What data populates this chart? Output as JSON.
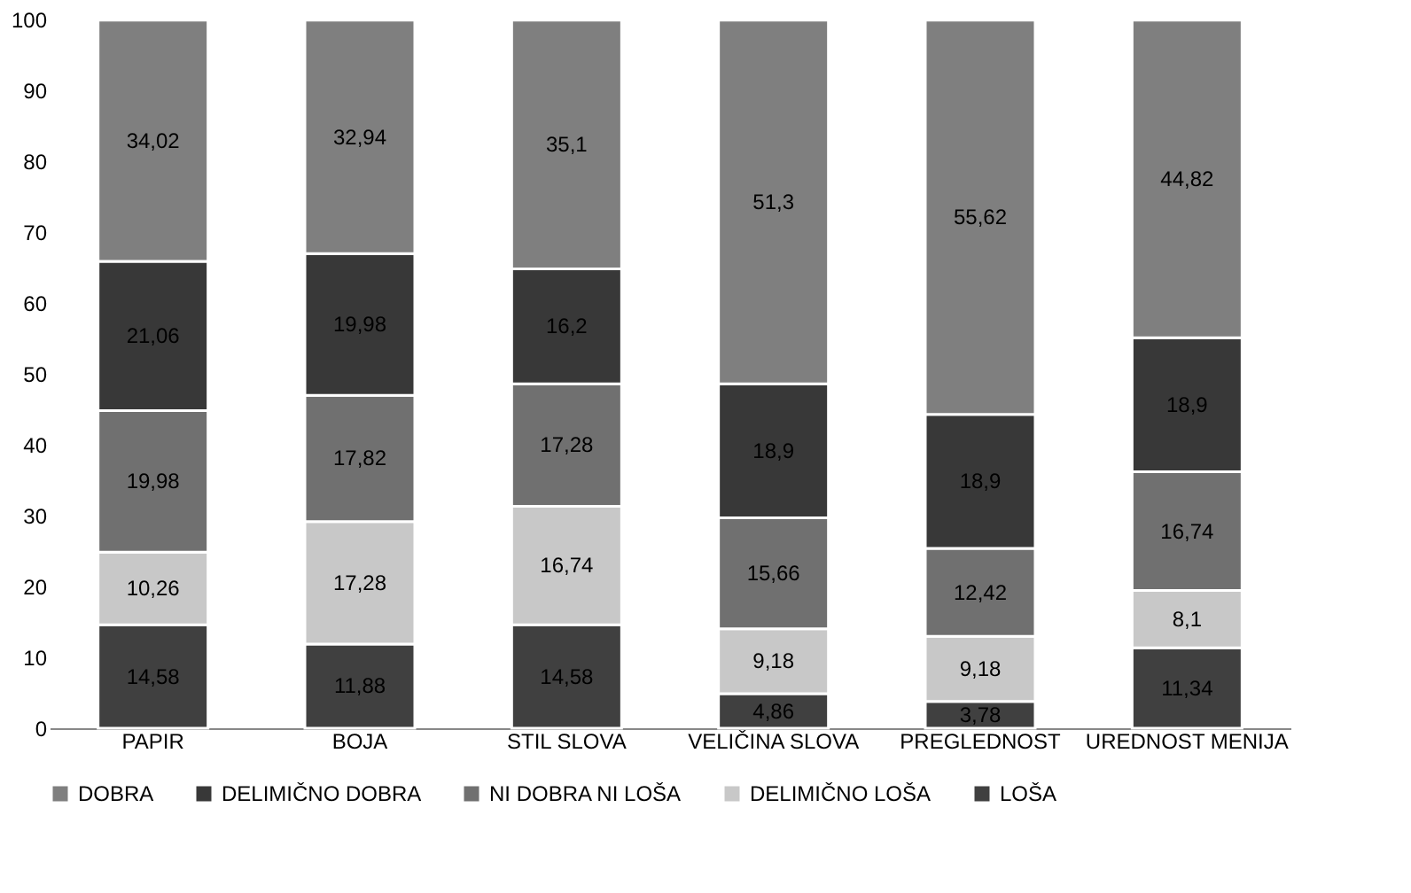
{
  "chart_data": {
    "type": "bar",
    "stacked": true,
    "categories": [
      "PAPIR",
      "BOJA",
      "STIL SLOVA",
      "VELIČINA SLOVA",
      "PREGLEDNOST",
      "UREDNOST MENIJA"
    ],
    "series": [
      {
        "name": "LOŠA",
        "color": "#404040",
        "values": [
          14.58,
          11.88,
          14.58,
          4.86,
          3.78,
          11.34
        ],
        "value_labels": [
          "14,58",
          "11,88",
          "14,58",
          "4,86",
          "3,78",
          "11,34"
        ]
      },
      {
        "name": "DELIMIČNO LOŠA",
        "color": "#c8c8c8",
        "values": [
          10.26,
          17.28,
          16.74,
          9.18,
          9.18,
          8.1
        ],
        "value_labels": [
          "10,26",
          "17,28",
          "16,74",
          "9,18",
          "9,18",
          "8,1"
        ]
      },
      {
        "name": "NI DOBRA NI LOŠA",
        "color": "#707070",
        "values": [
          19.98,
          17.82,
          17.28,
          15.66,
          12.42,
          16.74
        ],
        "value_labels": [
          "19,98",
          "17,82",
          "17,28",
          "15,66",
          "12,42",
          "16,74"
        ]
      },
      {
        "name": "DELIMIČNO DOBRA",
        "color": "#383838",
        "values": [
          21.06,
          19.98,
          16.2,
          18.9,
          18.9,
          18.9
        ],
        "value_labels": [
          "21,06",
          "19,98",
          "16,2",
          "18,9",
          "18,9",
          "18,9"
        ]
      },
      {
        "name": "DOBRA",
        "color": "#7f7f7f",
        "values": [
          34.02,
          32.94,
          35.1,
          51.3,
          55.62,
          44.82
        ],
        "value_labels": [
          "34,02",
          "32,94",
          "35,1",
          "51,3",
          "55,62",
          "44,82"
        ]
      }
    ],
    "ylim": [
      0,
      100
    ],
    "yticks": [
      0,
      10,
      20,
      30,
      40,
      50,
      60,
      70,
      80,
      90,
      100
    ],
    "grid": false,
    "legend": "bottom"
  }
}
